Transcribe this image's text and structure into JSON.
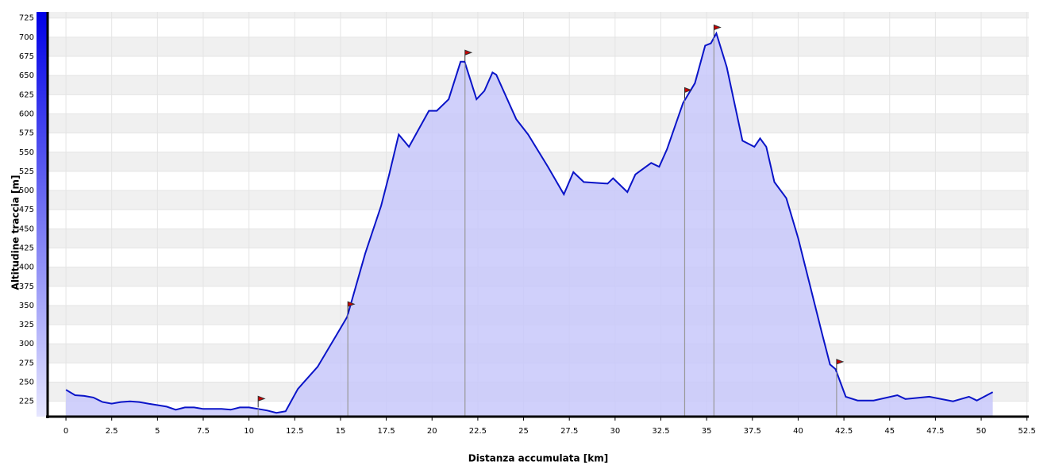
{
  "chart_data": {
    "type": "area",
    "xlabel": "Distanza accumulata [km]",
    "ylabel": "Altitudine traccia [m]",
    "x": [
      0,
      0.5,
      1,
      1.5,
      2,
      2.5,
      3,
      3.5,
      4,
      4.5,
      5,
      5.5,
      6,
      6.5,
      7,
      7.5,
      8,
      8.5,
      9,
      9.5,
      10,
      10.5,
      11,
      11.5,
      12,
      12.67,
      13.75,
      14.84,
      15.36,
      16.35,
      17.22,
      17.66,
      18.18,
      18.74,
      19.83,
      20.26,
      20.91,
      21.56,
      21.78,
      22.43,
      22.86,
      23.3,
      23.51,
      24.6,
      25.25,
      26.33,
      27.2,
      27.72,
      28.29,
      29.59,
      29.89,
      30.67,
      31.11,
      31.97,
      32.41,
      32.84,
      33.71,
      34.36,
      34.92,
      35.23,
      35.53,
      36.1,
      36.96,
      37.61,
      37.92,
      38.26,
      38.7,
      39.35,
      40.0,
      40.65,
      41.3,
      41.74,
      42.04,
      42.6,
      43.25,
      44.12,
      45.42,
      45.86,
      47.16,
      48.46,
      49.33,
      49.76,
      50.63
    ],
    "values": [
      240,
      233,
      232,
      230,
      224,
      222,
      224,
      225,
      224,
      222,
      220,
      218,
      214,
      217,
      217,
      215,
      215,
      215,
      214,
      217,
      217,
      215,
      213,
      210,
      212,
      241,
      270,
      314,
      335,
      418,
      480,
      521,
      573,
      557,
      604,
      604,
      619,
      668,
      668,
      619,
      630,
      654,
      651,
      593,
      573,
      531,
      495,
      524,
      511,
      509,
      516,
      498,
      521,
      536,
      531,
      554,
      614,
      640,
      689,
      692,
      705,
      661,
      565,
      557,
      568,
      557,
      511,
      490,
      438,
      376,
      314,
      273,
      267,
      231,
      226,
      226,
      233,
      228,
      231,
      225,
      231,
      226,
      237
    ],
    "waypoints": [
      10.5,
      15.4,
      21.8,
      33.8,
      35.4,
      42.1
    ],
    "xlim": [
      -1,
      52.6
    ],
    "ylim": [
      205,
      733
    ],
    "xticks": [
      0,
      2.5,
      5,
      7.5,
      10,
      12.5,
      15,
      17.5,
      20,
      22.5,
      25,
      27.5,
      30,
      32.5,
      35,
      37.5,
      40,
      42.5,
      45,
      47.5,
      50,
      52.5
    ],
    "yticks": [
      225,
      250,
      275,
      300,
      325,
      350,
      375,
      400,
      425,
      450,
      475,
      500,
      525,
      550,
      575,
      600,
      625,
      650,
      675,
      700,
      725
    ],
    "color": "#c8c8fa",
    "line_color": "#0a14c8",
    "grid": true
  }
}
